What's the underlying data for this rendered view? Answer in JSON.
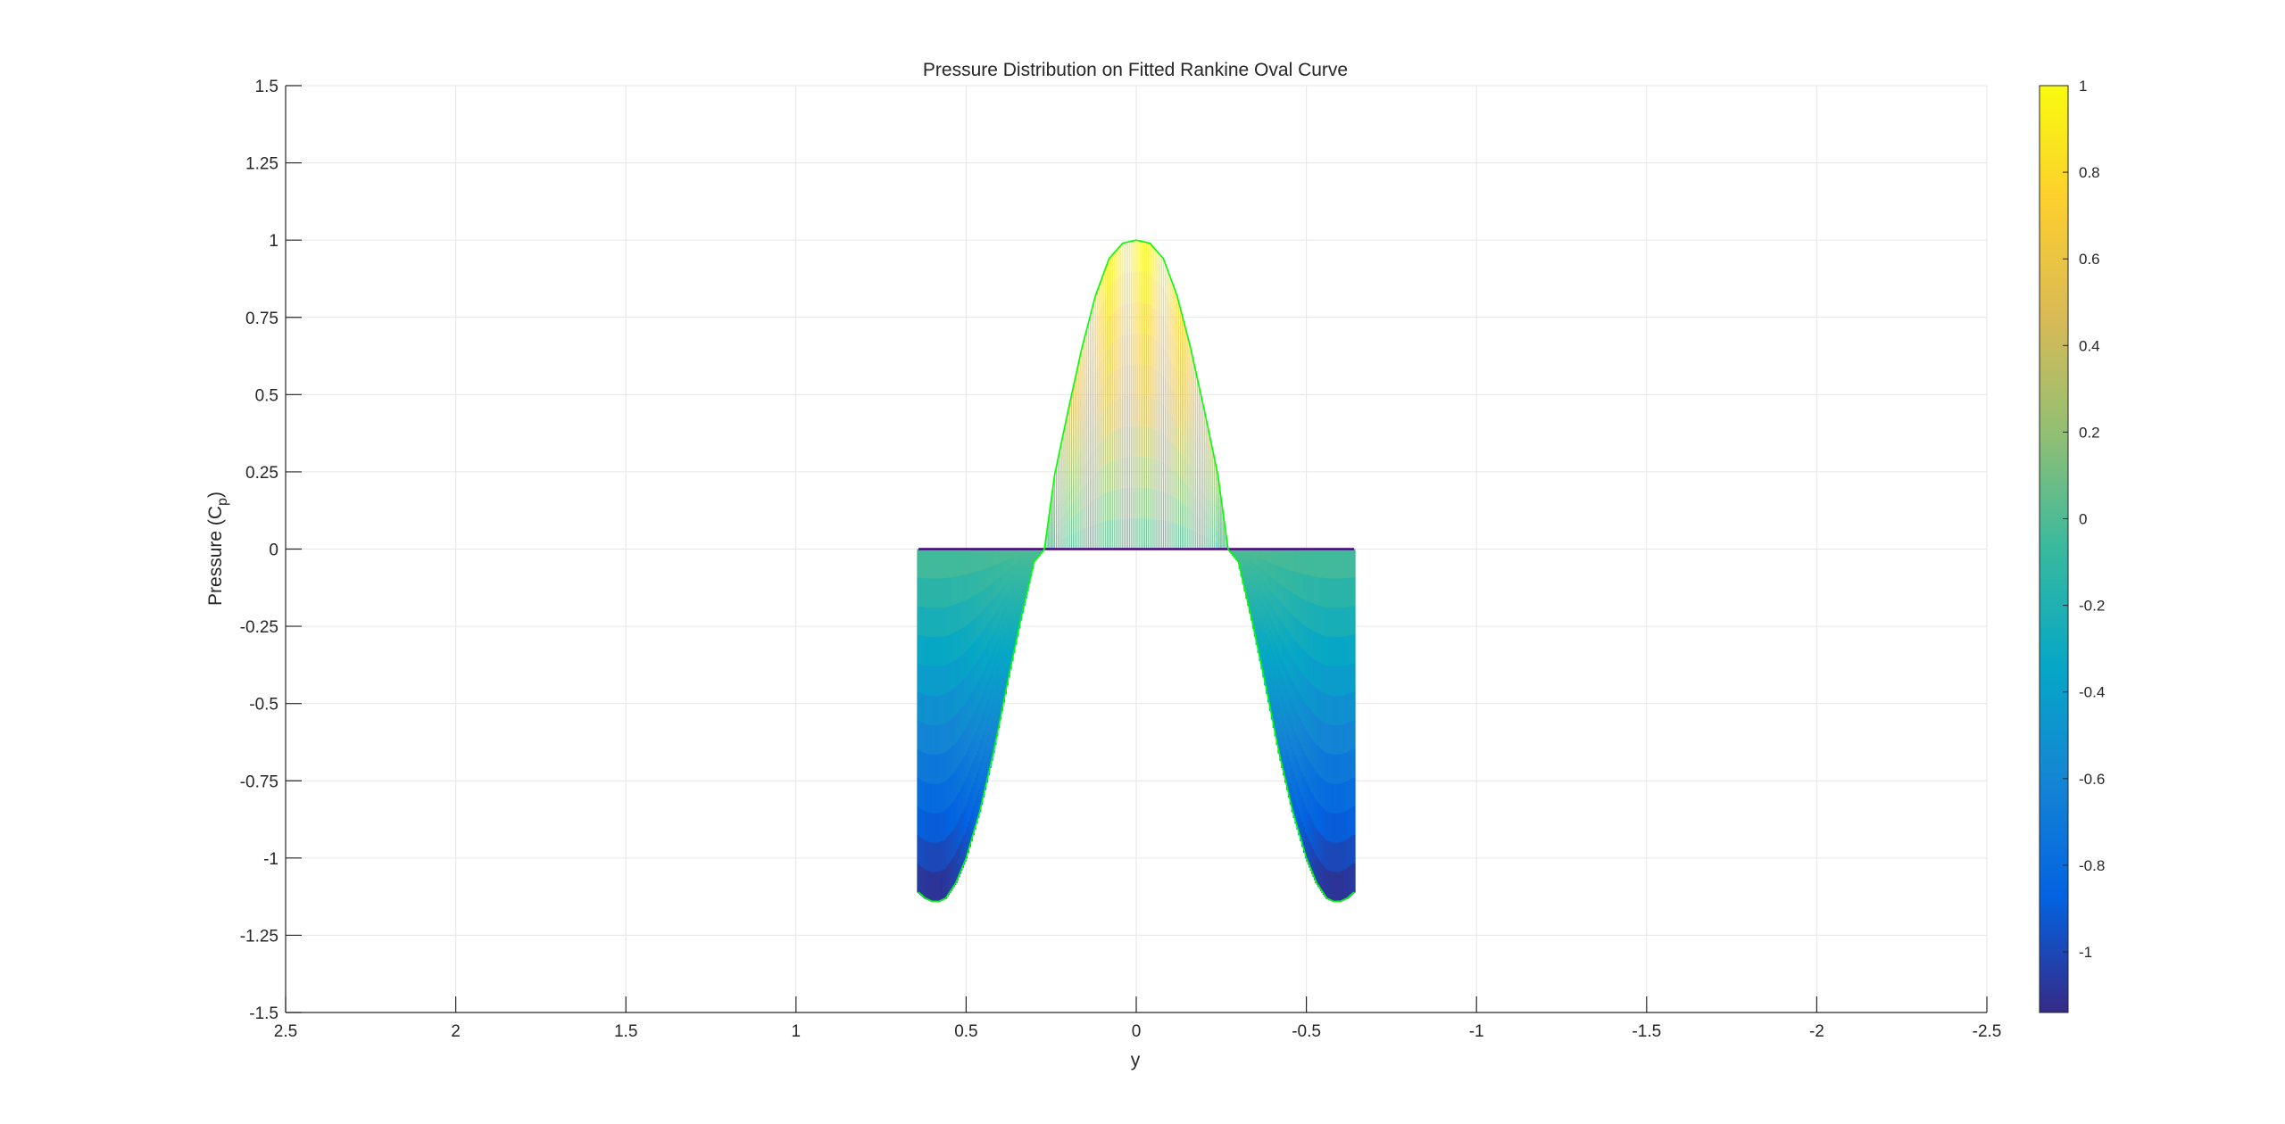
{
  "chart_data": {
    "type": "area",
    "title": "Pressure Distribution on Fitted Rankine Oval Curve",
    "xlabel": "y",
    "ylabel_main": "Pressure (C",
    "ylabel_sub": "p",
    "ylabel_close": ")",
    "xlim": [
      2.5,
      -2.5
    ],
    "ylim": [
      -1.5,
      1.5
    ],
    "x_reversed": true,
    "grid": true,
    "xticks": [
      "2.5",
      "2",
      "1.5",
      "1",
      "0.5",
      "0",
      "-0.5",
      "-1",
      "-1.5",
      "-2",
      "-2.5"
    ],
    "xtick_values": [
      2.5,
      2,
      1.5,
      1,
      0.5,
      0,
      -0.5,
      -1,
      -1.5,
      -2,
      -2.5
    ],
    "yticks": [
      "1.5",
      "1.25",
      "1",
      "0.75",
      "0.5",
      "0.25",
      "0",
      "-0.25",
      "-0.5",
      "-0.75",
      "-1",
      "-1.25",
      "-1.5"
    ],
    "ytick_values": [
      1.5,
      1.25,
      1,
      0.75,
      0.5,
      0.25,
      0,
      -0.25,
      -0.5,
      -0.75,
      -1,
      -1.25,
      -1.5
    ],
    "series": [
      {
        "x": [
          0.64,
          0.62,
          0.6,
          0.58,
          0.56,
          0.53,
          0.5,
          0.46,
          0.42,
          0.38,
          0.34,
          0.3,
          0.27,
          0.24,
          0.2,
          0.16,
          0.12,
          0.08,
          0.04,
          0,
          -0.04,
          -0.08,
          -0.12,
          -0.16,
          -0.2,
          -0.24,
          -0.27,
          -0.3,
          -0.34,
          -0.38,
          -0.42,
          -0.46,
          -0.5,
          -0.53,
          -0.56,
          -0.58,
          -0.6,
          -0.62,
          -0.64
        ],
        "y": [
          -1.11,
          -1.13,
          -1.14,
          -1.14,
          -1.13,
          -1.08,
          -1.0,
          -0.85,
          -0.66,
          -0.44,
          -0.23,
          -0.04,
          0.0,
          0.24,
          0.45,
          0.65,
          0.82,
          0.94,
          0.99,
          1.0,
          0.99,
          0.94,
          0.82,
          0.65,
          0.45,
          0.24,
          0.0,
          -0.04,
          -0.23,
          -0.44,
          -0.66,
          -0.85,
          -1.0,
          -1.08,
          -1.13,
          -1.14,
          -1.14,
          -1.13,
          -1.11
        ]
      }
    ],
    "colorbar": {
      "range": [
        -1.14,
        1.0
      ],
      "ticks": [
        "1",
        "0.8",
        "0.6",
        "0.4",
        "0.2",
        "0",
        "-0.2",
        "-0.4",
        "-0.6",
        "-0.8",
        "-1"
      ],
      "tick_values": [
        1,
        0.8,
        0.6,
        0.4,
        0.2,
        0,
        -0.2,
        -0.4,
        -0.6,
        -0.8,
        -1
      ],
      "colormap": "parula",
      "colormap_stops": [
        "#352a87",
        "#0363e1",
        "#1485d4",
        "#06a7c6",
        "#38b99e",
        "#92bf73",
        "#d9ba56",
        "#fcce2e",
        "#f9fb0e"
      ]
    },
    "edge_color": "#00ff00",
    "baseline_color": "#4b0082"
  }
}
